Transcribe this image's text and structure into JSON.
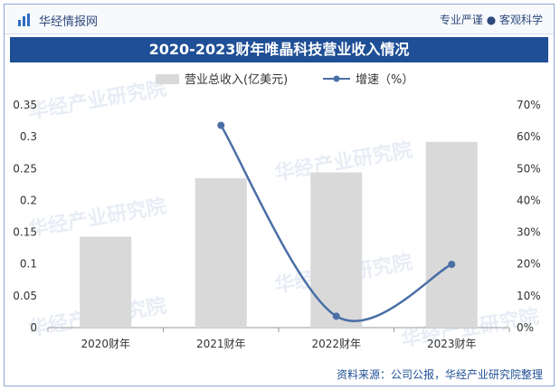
{
  "header": {
    "brand": "华经情报网",
    "slogan": "专业严谨 ● 客观科学"
  },
  "title": "2020-2023财年唯晶科技营业收入情况",
  "legend": {
    "bar_label": "营业总收入(亿美元)",
    "line_label": "增速（%）"
  },
  "source": "资料来源：公司公报，华经产业研究院整理",
  "watermark": "华经产业研究院",
  "colors": {
    "bar": "#d9d9d9",
    "line": "#4a6fa5",
    "title_bg": "#1f4f96"
  },
  "chart_data": {
    "type": "bar",
    "categories": [
      "2020财年",
      "2021财年",
      "2022财年",
      "2023财年"
    ],
    "series": [
      {
        "name": "营业总收入(亿美元)",
        "type": "bar",
        "axis": "left",
        "values": [
          0.143,
          0.235,
          0.244,
          0.292
        ]
      },
      {
        "name": "增速（%）",
        "type": "line",
        "axis": "right",
        "values": [
          null,
          63.6,
          3.6,
          19.9
        ]
      }
    ],
    "ylim": [
      0,
      0.35
    ],
    "yticks": [
      "0",
      "0.05",
      "0.1",
      "0.15",
      "0.2",
      "0.25",
      "0.3",
      "0.35"
    ],
    "y2lim": [
      0,
      70
    ],
    "y2ticks": [
      "0%",
      "10%",
      "20%",
      "30%",
      "40%",
      "50%",
      "60%",
      "70%"
    ],
    "grid": false,
    "legend_position": "top"
  }
}
